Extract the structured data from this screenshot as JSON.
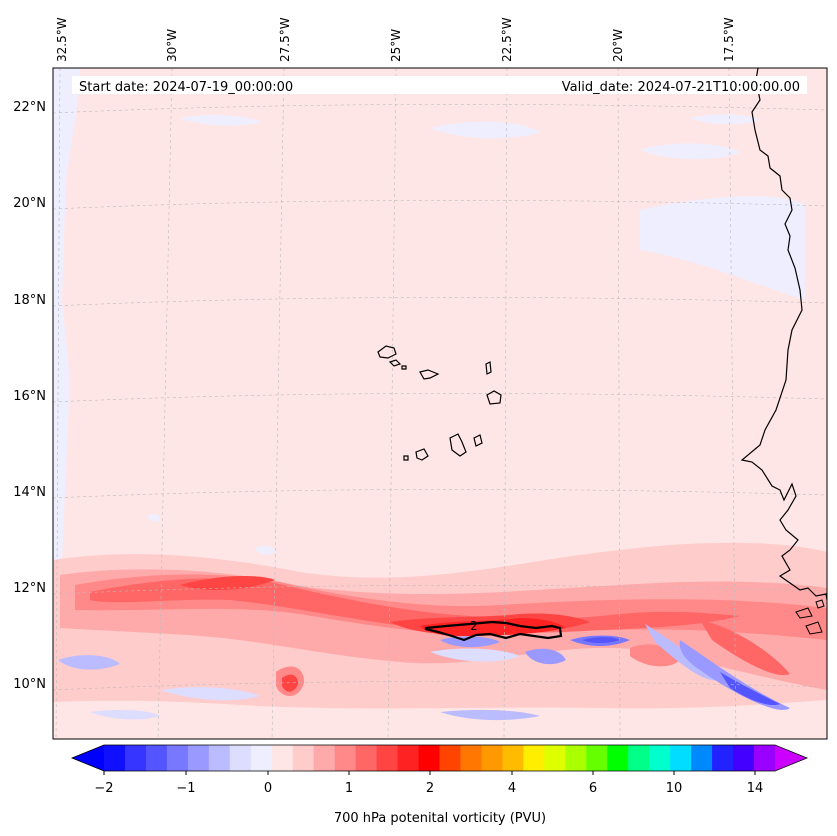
{
  "map": {
    "start_label": "Start date: 2024-07-19_00:00:00",
    "valid_label": "Valid_date: 2024-07-21T10:00:00.00",
    "lon_labels": [
      "32.5°W",
      "30°W",
      "27.5°W",
      "25°W",
      "22.5°W",
      "20°W",
      "17.5°W"
    ],
    "lat_labels": [
      "22°N",
      "20°N",
      "18°N",
      "16°N",
      "14°N",
      "12°N",
      "10°N"
    ],
    "contour_label": "2",
    "colors": {
      "background_positive": "#ffe6e6",
      "background_negative": "#eeeeff",
      "coast": "#000000"
    }
  },
  "colorbar": {
    "title": "700 hPa potenital vorticity (PVU)",
    "tick_labels": [
      "−2",
      "−1",
      "0",
      "1",
      "2",
      "4",
      "6",
      "10",
      "14"
    ],
    "colors": [
      "#1010ff",
      "#3535ff",
      "#5555ff",
      "#7777ff",
      "#9999ff",
      "#bbbbff",
      "#ddddff",
      "#eeeeff",
      "#ffe6e6",
      "#ffcccc",
      "#ffaaaa",
      "#ff8888",
      "#ff6666",
      "#ff4444",
      "#ff2222",
      "#ff0000",
      "#ff4400",
      "#ff7700",
      "#ff9900",
      "#ffbb00",
      "#ffee00",
      "#ddff00",
      "#aaff00",
      "#66ff00",
      "#00ff00",
      "#00ff88",
      "#00ffcc",
      "#00ddff",
      "#0088ff",
      "#2222ff",
      "#4400ff",
      "#9900ff"
    ],
    "left_extend_color": "#0000ff",
    "right_extend_color": "#cc00ff"
  }
}
